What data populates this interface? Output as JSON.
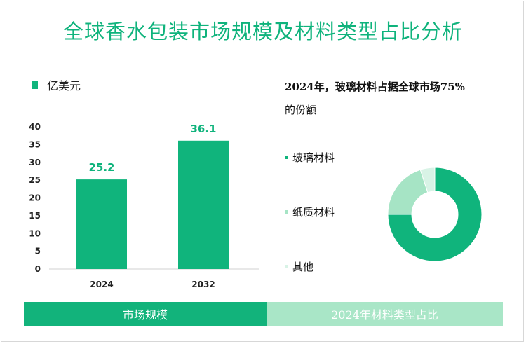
{
  "title": "全球香水包装市场规模及材料类型占比分析",
  "colors": {
    "accent": "#0fb37c",
    "bar": "#10b47c",
    "footer_left": "#12b37b",
    "footer_right": "#a9e6c7"
  },
  "bar_legend": {
    "label": "亿美元"
  },
  "pie_section": {
    "title_line1": "2024年，玻璃材料占据全球市场75%",
    "title_line2": "的份额"
  },
  "footer": {
    "left_label": "市场规模",
    "right_label": "2024年材料类型占比"
  },
  "chart_data": [
    {
      "type": "bar",
      "categories": [
        "2024",
        "2032"
      ],
      "values": [
        25.2,
        36.1
      ],
      "value_labels": [
        "25.2",
        "36.1"
      ],
      "ylim": [
        0,
        40
      ],
      "yticks": [
        0,
        5,
        10,
        15,
        20,
        25,
        30,
        35,
        40
      ],
      "ylabel": "亿美元",
      "legend": "亿美元"
    },
    {
      "type": "pie",
      "donut": true,
      "categories": [
        "玻璃材料",
        "纸质材料",
        "其他"
      ],
      "values": [
        75,
        20,
        5
      ],
      "colors": [
        "#10b47c",
        "#a6e4c5",
        "#d8f3e6"
      ]
    }
  ]
}
